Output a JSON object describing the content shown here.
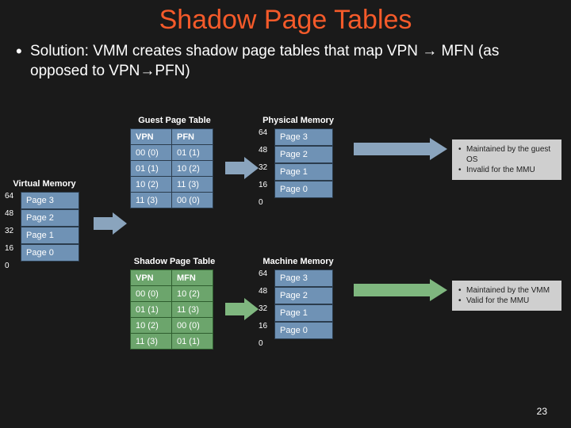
{
  "title": "Shadow Page Tables",
  "bullet_html": "Solution: VMM creates shadow page tables that map VPN → MFN (as opposed to VPN→PFN)",
  "slide_number": "23",
  "colors": {
    "background": "#1a1a1a",
    "title_color": "#f45a2a",
    "text_color": "#ffffff",
    "table_blue": "#6f92b5",
    "table_blue_border": "#2b3c4d",
    "table_green": "#6ca56c",
    "table_green_border": "#2e5d2e",
    "note_bg": "#cfcfcf",
    "arrow_fill": "#8aa4bd"
  },
  "virtual_memory": {
    "title": "Virtual Memory",
    "ticks": [
      "64",
      "48",
      "32",
      "16",
      "0"
    ],
    "cells": [
      "Page 3",
      "Page 2",
      "Page 1",
      "Page 0"
    ]
  },
  "guest_table": {
    "title": "Guest Page Table",
    "headers": [
      "VPN",
      "PFN"
    ],
    "rows": [
      [
        "00 (0)",
        "01 (1)"
      ],
      [
        "01 (1)",
        "10 (2)"
      ],
      [
        "10 (2)",
        "11 (3)"
      ],
      [
        "11 (3)",
        "00 (0)"
      ]
    ]
  },
  "physical_memory": {
    "title": "Physical Memory",
    "ticks": [
      "64",
      "48",
      "32",
      "16",
      "0"
    ],
    "cells": [
      "Page 3",
      "Page 2",
      "Page 1",
      "Page 0"
    ]
  },
  "shadow_table": {
    "title": "Shadow Page Table",
    "headers": [
      "VPN",
      "MFN"
    ],
    "rows": [
      [
        "00 (0)",
        "10 (2)"
      ],
      [
        "01 (1)",
        "11 (3)"
      ],
      [
        "10 (2)",
        "00 (0)"
      ],
      [
        "11 (3)",
        "01 (1)"
      ]
    ]
  },
  "machine_memory": {
    "title": "Machine Memory",
    "ticks": [
      "64",
      "48",
      "32",
      "16",
      "0"
    ],
    "cells": [
      "Page 3",
      "Page 2",
      "Page 1",
      "Page 0"
    ]
  },
  "note_top": {
    "items": [
      "Maintained by the guest OS",
      "Invalid for the MMU"
    ]
  },
  "note_bottom": {
    "items": [
      "Maintained by the VMM",
      "Valid for the MMU"
    ]
  }
}
